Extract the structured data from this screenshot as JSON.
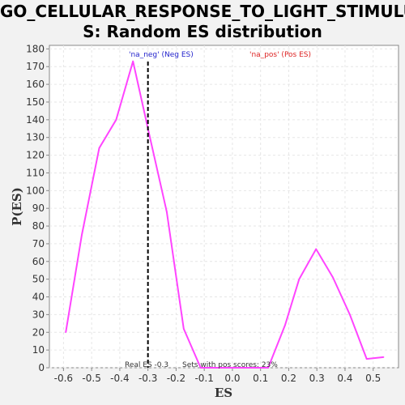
{
  "chart_data": {
    "type": "line",
    "title_line1": "GO_CELLULAR_RESPONSE_TO_LIGHT_STIMULU",
    "title_line2": "S: Random ES distribution",
    "xlabel": "ES",
    "ylabel": "P(ES)",
    "xlim": [
      -0.65,
      0.59
    ],
    "ylim": [
      0,
      182
    ],
    "xticks": [
      -0.6,
      -0.5,
      -0.4,
      -0.3,
      -0.2,
      -0.1,
      0.0,
      0.1,
      0.2,
      0.3,
      0.4,
      0.5
    ],
    "xtick_labels": [
      "-0.6",
      "-0.5",
      "-0.4",
      "-0.3",
      "-0.2",
      "-0.1",
      "0.0",
      "0.1",
      "0.2",
      "0.3",
      "0.4",
      "0.5"
    ],
    "yticks": [
      0,
      10,
      20,
      30,
      40,
      50,
      60,
      70,
      80,
      90,
      100,
      110,
      120,
      130,
      140,
      150,
      160,
      170,
      180
    ],
    "ytick_labels": [
      "0",
      "10",
      "20",
      "30",
      "40",
      "50",
      "60",
      "70",
      "80",
      "90",
      "100",
      "110",
      "120",
      "130",
      "140",
      "150",
      "160",
      "170",
      "180"
    ],
    "grid": true,
    "series": [
      {
        "color": "#ff44ff",
        "x": [
          -0.592,
          -0.535,
          -0.473,
          -0.413,
          -0.353,
          -0.293,
          -0.233,
          -0.173,
          -0.113,
          0.127,
          0.187,
          0.237,
          0.297,
          0.357,
          0.417,
          0.477,
          0.537
        ],
        "y": [
          20,
          75,
          124,
          140,
          173,
          130,
          88,
          22,
          0,
          0,
          24,
          50,
          67,
          51,
          30,
          5,
          6
        ]
      }
    ],
    "real_es_line": {
      "x": -0.3,
      "color": "#000000",
      "style": "dashed"
    },
    "legend": [
      {
        "label": "'na_neg' (Neg ES)",
        "color": "#2222cc"
      },
      {
        "label": "'na_pos' (Pos ES)",
        "color": "#dd2222"
      }
    ],
    "annotations": [
      "Real ES -0.3",
      "Sets with pos scores: 23%"
    ]
  }
}
